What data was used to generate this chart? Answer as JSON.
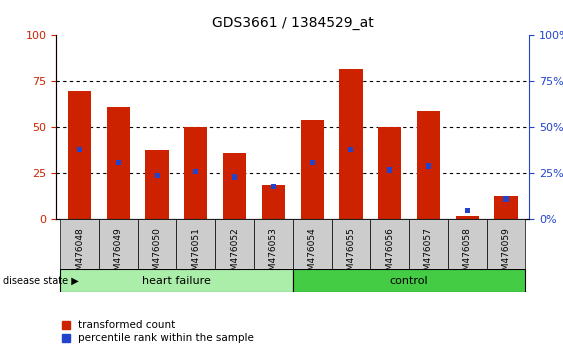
{
  "title": "GDS3661 / 1384529_at",
  "categories": [
    "GSM476048",
    "GSM476049",
    "GSM476050",
    "GSM476051",
    "GSM476052",
    "GSM476053",
    "GSM476054",
    "GSM476055",
    "GSM476056",
    "GSM476057",
    "GSM476058",
    "GSM476059"
  ],
  "red_values": [
    70,
    61,
    38,
    50,
    36,
    19,
    54,
    82,
    50,
    59,
    2,
    13
  ],
  "blue_values": [
    38,
    31,
    24,
    26,
    23,
    18,
    31,
    38,
    27,
    29,
    5,
    11
  ],
  "heart_failure_count": 6,
  "control_count": 6,
  "ylim": [
    0,
    100
  ],
  "yticks": [
    0,
    25,
    50,
    75,
    100
  ],
  "red_color": "#cc2200",
  "blue_color": "#2244cc",
  "bar_bg_color": "#cccccc",
  "hf_bg_color": "#aaeeaa",
  "ctrl_bg_color": "#44cc44",
  "legend_red_label": "transformed count",
  "legend_blue_label": "percentile rank within the sample",
  "disease_state_label": "disease state",
  "hf_label": "heart failure",
  "ctrl_label": "control"
}
